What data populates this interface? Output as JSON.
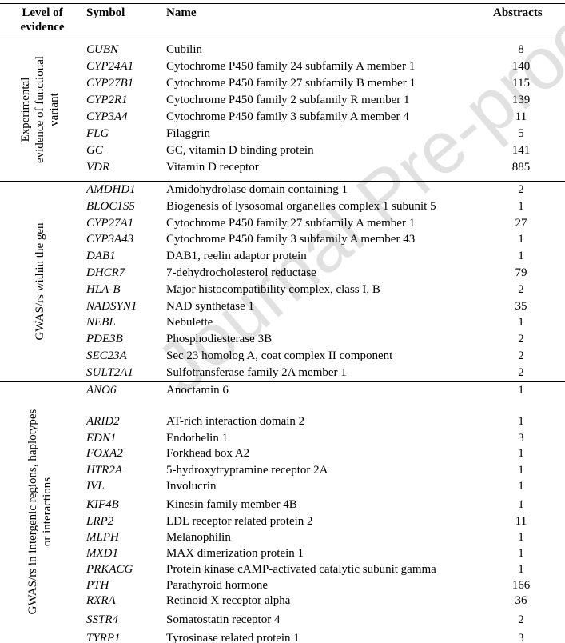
{
  "header": {
    "level": "Level of evidence",
    "symbol": "Symbol",
    "name": "Name",
    "abstracts": "Abstracts"
  },
  "watermark": "Journal Pre-proof",
  "groups": [
    {
      "level_lines": [
        "Experimental",
        "evidence of functional",
        "variant"
      ],
      "rows": [
        [
          "CUBN",
          "Cubilin",
          8
        ],
        [
          "CYP24A1",
          "Cytochrome P450 family 24 subfamily A member 1",
          140
        ],
        [
          "CYP27B1",
          "Cytochrome P450 family 27 subfamily B member 1",
          115
        ],
        [
          "CYP2R1",
          "Cytochrome P450 family 2 subfamily R member 1",
          139
        ],
        [
          "CYP3A4",
          "Cytochrome P450 family 3 subfamily A member 4",
          11
        ],
        [
          "FLG",
          "Filaggrin",
          5
        ],
        [
          "GC",
          "GC, vitamin D binding protein",
          141
        ],
        [
          "VDR",
          "Vitamin D receptor",
          885
        ]
      ]
    },
    {
      "level_lines": [
        "GWAS/rs within the gen"
      ],
      "rows": [
        [
          "AMDHD1",
          "Amidohydrolase domain containing 1",
          2
        ],
        [
          "BLOC1S5",
          "Biogenesis of lysosomal organelles complex 1 subunit 5",
          1
        ],
        [
          "CYP27A1",
          "Cytochrome P450 family 27 subfamily A member 1",
          27
        ],
        [
          "CYP3A43",
          "Cytochrome P450 family 3 subfamily A member 43",
          1
        ],
        [
          "DAB1",
          "DAB1, reelin adaptor protein",
          1
        ],
        [
          "DHCR7",
          "7-dehydrocholesterol reductase",
          79
        ],
        [
          "HLA-B",
          "Major histocompatibility complex, class I, B",
          2
        ],
        [
          "NADSYN1",
          "NAD synthetase 1",
          35
        ],
        [
          "NEBL",
          "Nebulette",
          1
        ],
        [
          "PDE3B",
          "Phosphodiesterase 3B",
          2
        ],
        [
          "SEC23A",
          "Sec 23 homolog A, coat complex II component",
          2
        ],
        [
          "SULT2A1",
          "Sulfotransferase family 2A member 1",
          2
        ]
      ]
    },
    {
      "level_lines": [
        "GWAS/rs in intergenic regions, haplotypes",
        "or interactions"
      ],
      "rows": [
        [
          "ANO6",
          "Anoctamin 6",
          1
        ],
        [
          "ARID2",
          "AT-rich interaction domain 2",
          1
        ],
        [
          "EDN1",
          "Endothelin 1",
          3
        ],
        [
          "FOXA2",
          "Forkhead box A2",
          1
        ],
        [
          "HTR2A",
          "5-hydroxytryptamine receptor 2A",
          1
        ],
        [
          "IVL",
          "Involucrin",
          1
        ],
        [
          "KIF4B",
          "Kinesin family member 4B",
          1
        ],
        [
          "LRP2",
          "LDL receptor related protein 2",
          11
        ],
        [
          "MLPH",
          "Melanophilin",
          1
        ],
        [
          "MXD1",
          "MAX dimerization protein 1",
          1
        ],
        [
          "PRKACG",
          "Protein kinase cAMP-activated catalytic subunit gamma",
          1
        ],
        [
          "PTH",
          "Parathyroid hormone",
          166
        ],
        [
          "RXRA",
          "Retinoid X receptor alpha",
          36
        ],
        [
          "SSTR4",
          "Somatostatin receptor 4",
          2
        ],
        [
          "TYRP1",
          "Tyrosinase related protein 1",
          3
        ]
      ]
    }
  ]
}
